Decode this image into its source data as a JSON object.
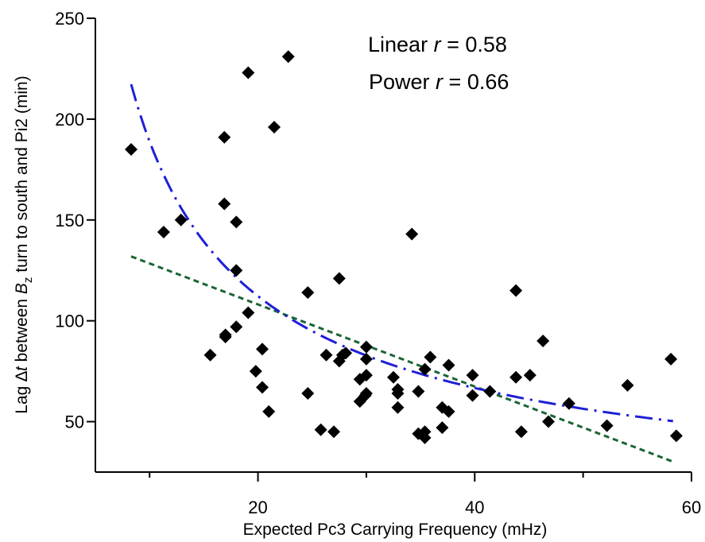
{
  "chart_data": {
    "type": "scatter",
    "title": "",
    "xlabel": "Expected Pc3 Carrying Frequency (mHz)",
    "ylabel": {
      "pre": "Lag ",
      "delta": "∆",
      "t": "t",
      "mid": " between ",
      "B": "B",
      "sub": "z",
      "post": " turn to south and Pi2 (min)"
    },
    "xlim": [
      5,
      60
    ],
    "ylim": [
      25,
      250
    ],
    "x_ticks": [
      20,
      40,
      60
    ],
    "x_minor_ticks": [
      10,
      30,
      50
    ],
    "y_ticks": [
      50,
      100,
      150,
      200,
      250
    ],
    "grid": false,
    "annotations": [
      {
        "prefix": "Linear ",
        "var": "r",
        "suffix": " = 0.58"
      },
      {
        "prefix": "Power ",
        "var": "r",
        "suffix": " = 0.66"
      }
    ],
    "points": [
      [
        8.3,
        185
      ],
      [
        11.3,
        144
      ],
      [
        12.9,
        150
      ],
      [
        15.6,
        83
      ],
      [
        16.9,
        191
      ],
      [
        16.9,
        158
      ],
      [
        17.0,
        93
      ],
      [
        17.0,
        92
      ],
      [
        18.0,
        149
      ],
      [
        18.0,
        125
      ],
      [
        18.0,
        97
      ],
      [
        19.1,
        223
      ],
      [
        19.1,
        104
      ],
      [
        19.8,
        75
      ],
      [
        20.4,
        86
      ],
      [
        20.4,
        67
      ],
      [
        21.0,
        55
      ],
      [
        21.5,
        196
      ],
      [
        22.8,
        231
      ],
      [
        24.6,
        114
      ],
      [
        24.6,
        64
      ],
      [
        25.8,
        46
      ],
      [
        26.3,
        83
      ],
      [
        27.0,
        45
      ],
      [
        27.5,
        80
      ],
      [
        27.5,
        121
      ],
      [
        27.8,
        83
      ],
      [
        28.1,
        84
      ],
      [
        29.4,
        71
      ],
      [
        29.4,
        60
      ],
      [
        29.9,
        63
      ],
      [
        30.0,
        87
      ],
      [
        30.0,
        81
      ],
      [
        30.0,
        73
      ],
      [
        30.0,
        64
      ],
      [
        32.5,
        72
      ],
      [
        32.9,
        57
      ],
      [
        32.9,
        66
      ],
      [
        32.9,
        64
      ],
      [
        34.2,
        143
      ],
      [
        34.8,
        44
      ],
      [
        34.8,
        65
      ],
      [
        35.4,
        76
      ],
      [
        35.4,
        42
      ],
      [
        35.4,
        45
      ],
      [
        35.9,
        82
      ],
      [
        37.0,
        47
      ],
      [
        37.0,
        57
      ],
      [
        37.6,
        78
      ],
      [
        37.6,
        55
      ],
      [
        39.8,
        73
      ],
      [
        39.8,
        63
      ],
      [
        41.4,
        65
      ],
      [
        43.8,
        115
      ],
      [
        43.8,
        72
      ],
      [
        44.3,
        45
      ],
      [
        45.1,
        73
      ],
      [
        46.3,
        90
      ],
      [
        46.8,
        50
      ],
      [
        48.7,
        59
      ],
      [
        52.2,
        48
      ],
      [
        54.1,
        68
      ],
      [
        58.1,
        81
      ],
      [
        58.6,
        43
      ]
    ],
    "series": [
      {
        "fit": "linear",
        "color": "#1a6634",
        "style": "dashed",
        "x_range": [
          8.3,
          58.3
        ],
        "coef": [
          148.8,
          -2.035
        ]
      },
      {
        "fit": "power",
        "color": "#1f1fd6",
        "style": "dash-dot",
        "x_range": [
          8.3,
          58.3
        ],
        "coef": [
          1065.3,
          -0.7512
        ]
      }
    ]
  }
}
